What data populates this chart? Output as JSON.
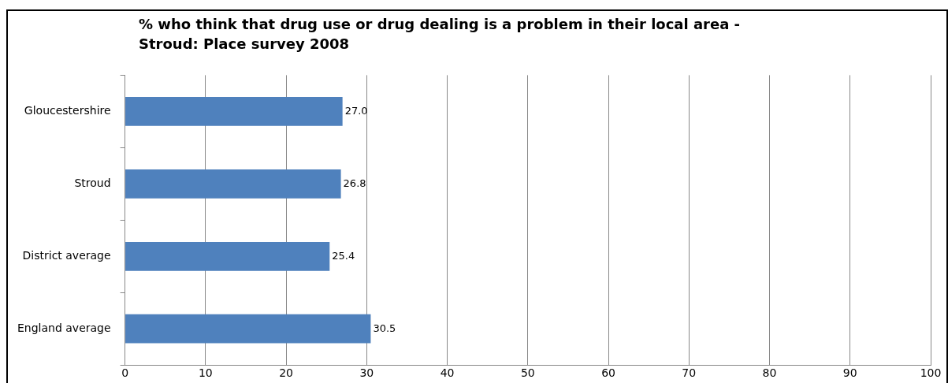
{
  "chart_data": {
    "type": "bar",
    "orientation": "horizontal",
    "title": "% who think that drug use or drug dealing is a problem in their local area - \nStroud: Place survey 2008",
    "categories": [
      "Gloucestershire",
      "Stroud",
      "District average",
      "England average"
    ],
    "values": [
      27.0,
      26.8,
      25.4,
      30.5
    ],
    "color": "#4f81bd",
    "value_labels": [
      "27.0",
      "26.8",
      "25.4",
      "30.5"
    ],
    "xlim": [
      0,
      100
    ],
    "xticks": [
      0,
      10,
      20,
      30,
      40,
      50,
      60,
      70,
      80,
      90,
      100
    ],
    "grid": "x"
  }
}
